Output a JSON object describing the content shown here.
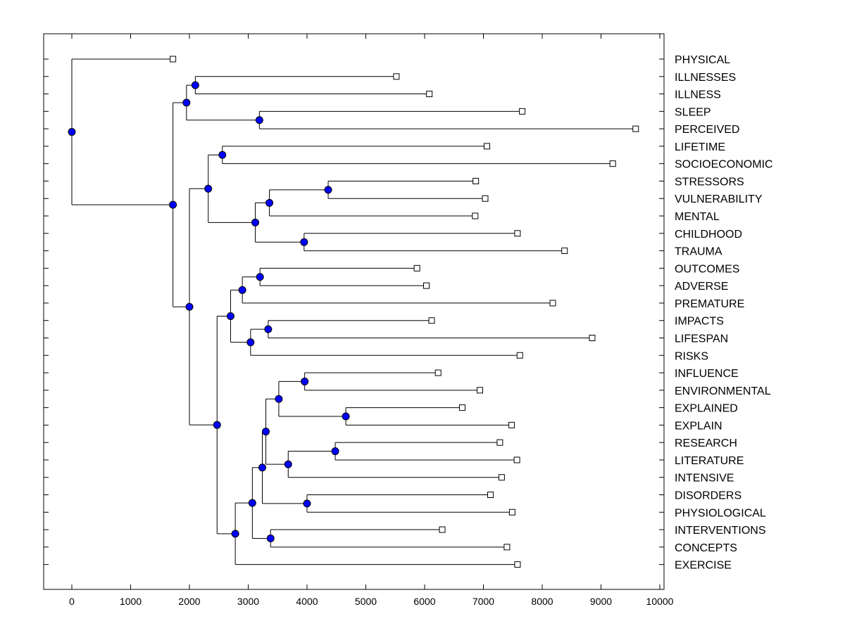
{
  "chart_data": {
    "type": "dendrogram",
    "title": "",
    "xlabel": "",
    "ylabel": "",
    "xlim": [
      -500,
      10000
    ],
    "xticks": [
      0,
      1000,
      2000,
      3000,
      4000,
      5000,
      6000,
      7000,
      8000,
      9000,
      10000
    ],
    "xtick_labels": [
      "0",
      "1000",
      "2000",
      "3000",
      "4000",
      "5000",
      "6000",
      "7000",
      "8000",
      "9000",
      "10000"
    ],
    "leaves": [
      {
        "label": "PHYSICAL",
        "x": 1720
      },
      {
        "label": "ILLNESSES",
        "x": 5520
      },
      {
        "label": "ILLNESS",
        "x": 6080
      },
      {
        "label": "SLEEP",
        "x": 7660
      },
      {
        "label": "PERCEIVED",
        "x": 9590
      },
      {
        "label": "LIFETIME",
        "x": 7060
      },
      {
        "label": "SOCIOECONOMIC",
        "x": 9200
      },
      {
        "label": "STRESSORS",
        "x": 6870
      },
      {
        "label": "VULNERABILITY",
        "x": 7030
      },
      {
        "label": "MENTAL",
        "x": 6860
      },
      {
        "label": "CHILDHOOD",
        "x": 7580
      },
      {
        "label": "TRAUMA",
        "x": 8380
      },
      {
        "label": "OUTCOMES",
        "x": 5870
      },
      {
        "label": "ADVERSE",
        "x": 6030
      },
      {
        "label": "PREMATURE",
        "x": 8180
      },
      {
        "label": "IMPACTS",
        "x": 6120
      },
      {
        "label": "LIFESPAN",
        "x": 8850
      },
      {
        "label": "RISKS",
        "x": 7620
      },
      {
        "label": "INFLUENCE",
        "x": 6230
      },
      {
        "label": "ENVIRONMENTAL",
        "x": 6940
      },
      {
        "label": "EXPLAINED",
        "x": 6640
      },
      {
        "label": "EXPLAIN",
        "x": 7480
      },
      {
        "label": "RESEARCH",
        "x": 7280
      },
      {
        "label": "LITERATURE",
        "x": 7570
      },
      {
        "label": "INTENSIVE",
        "x": 7310
      },
      {
        "label": "DISORDERS",
        "x": 7120
      },
      {
        "label": "PHYSIOLOGICAL",
        "x": 7490
      },
      {
        "label": "INTERVENTIONS",
        "x": 6300
      },
      {
        "label": "CONCEPTS",
        "x": 7400
      },
      {
        "label": "EXERCISE",
        "x": 7580
      }
    ],
    "merges": [
      {
        "id": "n1",
        "x": 2100,
        "children": [
          "L1",
          "L2"
        ]
      },
      {
        "id": "n2",
        "x": 3190,
        "children": [
          "L3",
          "L4"
        ]
      },
      {
        "id": "n3",
        "x": 1950,
        "children": [
          "n1",
          "n2"
        ]
      },
      {
        "id": "n4",
        "x": 2560,
        "children": [
          "L5",
          "L6"
        ]
      },
      {
        "id": "n5",
        "x": 4360,
        "children": [
          "L7",
          "L8"
        ]
      },
      {
        "id": "n6",
        "x": 3360,
        "children": [
          "n5",
          "L9"
        ]
      },
      {
        "id": "n7",
        "x": 3950,
        "children": [
          "L10",
          "L11"
        ]
      },
      {
        "id": "n8",
        "x": 3120,
        "children": [
          "n6",
          "n7"
        ]
      },
      {
        "id": "n9",
        "x": 2320,
        "children": [
          "n4",
          "n8"
        ]
      },
      {
        "id": "n10",
        "x": 3200,
        "children": [
          "L12",
          "L13"
        ]
      },
      {
        "id": "n11",
        "x": 2900,
        "children": [
          "n10",
          "L14"
        ]
      },
      {
        "id": "n12",
        "x": 3340,
        "children": [
          "L15",
          "L16"
        ]
      },
      {
        "id": "n13",
        "x": 3040,
        "children": [
          "n12",
          "L17"
        ]
      },
      {
        "id": "n14",
        "x": 2700,
        "children": [
          "n11",
          "n13"
        ]
      },
      {
        "id": "n15",
        "x": 3960,
        "children": [
          "L18",
          "L19"
        ]
      },
      {
        "id": "n16",
        "x": 4660,
        "children": [
          "L20",
          "L21"
        ]
      },
      {
        "id": "n17",
        "x": 3520,
        "children": [
          "n15",
          "n16"
        ]
      },
      {
        "id": "n18",
        "x": 4480,
        "children": [
          "L22",
          "L23"
        ]
      },
      {
        "id": "n19",
        "x": 3680,
        "children": [
          "n18",
          "L24"
        ]
      },
      {
        "id": "n20",
        "x": 3300,
        "children": [
          "n17",
          "n19"
        ]
      },
      {
        "id": "n21",
        "x": 4000,
        "children": [
          "L25",
          "L26"
        ]
      },
      {
        "id": "n22",
        "x": 3240,
        "children": [
          "n20",
          "n21"
        ]
      },
      {
        "id": "n23",
        "x": 3380,
        "children": [
          "L27",
          "L28"
        ]
      },
      {
        "id": "n24",
        "x": 3070,
        "children": [
          "n22",
          "n23"
        ]
      },
      {
        "id": "n25",
        "x": 2780,
        "children": [
          "n24",
          "L29"
        ]
      },
      {
        "id": "n26",
        "x": 2470,
        "children": [
          "n14",
          "n25"
        ]
      },
      {
        "id": "n27",
        "x": 2000,
        "children": [
          "n9",
          "n26"
        ]
      },
      {
        "id": "n28",
        "x": 1720,
        "children": [
          "n3",
          "n27"
        ]
      },
      {
        "id": "n29",
        "x": 0,
        "children": [
          "L0",
          "n28"
        ]
      }
    ],
    "grid": false,
    "legend": "none"
  },
  "colors": {
    "node_fill": "#0000ff",
    "line": "#000000",
    "leaf_fill": "#ffffff"
  }
}
